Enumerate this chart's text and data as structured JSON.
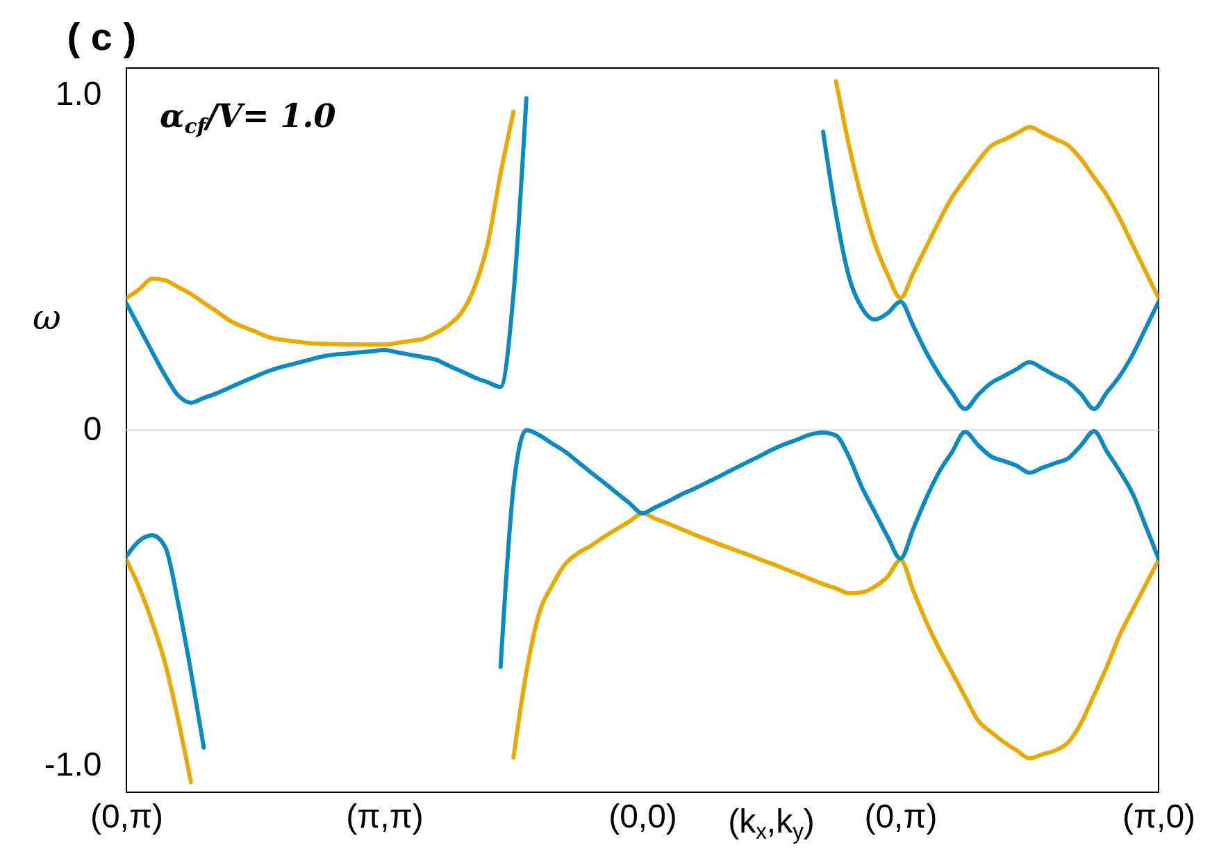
{
  "chart_data": {
    "type": "line",
    "title": "( c )",
    "xlabel": "(k$_{x}$,k$_{y}$)",
    "ylabel": "ω",
    "annotations": [
      "α$_{cf}$/V= 1.0"
    ],
    "categories": [
      "(0,π)",
      null,
      null,
      null,
      null,
      null,
      null,
      null,
      null,
      null,
      null,
      null,
      null,
      null,
      null,
      null,
      null,
      null,
      null,
      null,
      "(π,π)",
      null,
      null,
      null,
      null,
      null,
      null,
      null,
      null,
      null,
      null,
      null,
      null,
      null,
      null,
      null,
      null,
      null,
      null,
      null,
      "(0,0)",
      null,
      null,
      null,
      null,
      null,
      null,
      null,
      null,
      null,
      null,
      null,
      null,
      null,
      null,
      null,
      null,
      null,
      null,
      null,
      "(0,π)",
      null,
      null,
      null,
      null,
      null,
      null,
      null,
      null,
      null,
      null,
      null,
      null,
      null,
      null,
      null,
      null,
      null,
      null,
      null,
      "(π,0)"
    ],
    "ylim": [
      -1.08,
      1.08
    ],
    "yticks": [
      {
        "value": -1,
        "label": "-1.0"
      },
      0,
      {
        "value": 1,
        "label": "1.0"
      }
    ],
    "grid": false,
    "ref_lines": [
      {
        "axis": "y",
        "value": 0,
        "color": "#d9d9d9"
      }
    ],
    "series": [
      {
        "color": "#e8a900",
        "values": [
          0.394,
          0.42,
          0.452,
          0.447,
          0.427,
          0.406,
          0.38,
          0.354,
          0.327,
          0.309,
          0.294,
          0.278,
          0.27,
          0.265,
          0.26,
          0.258,
          0.257,
          0.256,
          0.256,
          0.255,
          0.255,
          0.26,
          0.266,
          0.272,
          0.29,
          0.314,
          0.352,
          0.428,
          0.556,
          0.765,
          0.95,
          null,
          null,
          null,
          null,
          null,
          null,
          null,
          null,
          null,
          null,
          null,
          null,
          null,
          null,
          null,
          null,
          null,
          null,
          null,
          null,
          null,
          null,
          null,
          null,
          null,
          null,
          null,
          null,
          null,
          null,
          null,
          null,
          null,
          null,
          null,
          null,
          null,
          null,
          null,
          null,
          null,
          null,
          null,
          null,
          null,
          null,
          null,
          null,
          null,
          null
        ]
      },
      {
        "color": "#e8a900",
        "values": [
          null,
          null,
          null,
          null,
          null,
          null,
          null,
          null,
          null,
          null,
          null,
          null,
          null,
          null,
          null,
          null,
          null,
          null,
          null,
          null,
          null,
          null,
          null,
          null,
          null,
          null,
          null,
          null,
          null,
          null,
          null,
          null,
          null,
          null,
          null,
          null,
          null,
          null,
          null,
          null,
          null,
          null,
          null,
          null,
          null,
          null,
          null,
          null,
          null,
          null,
          null,
          null,
          null,
          null,
          null,
          1.04,
          0.85,
          0.69,
          0.558,
          0.464,
          0.394,
          0.47,
          0.547,
          0.624,
          0.695,
          0.749,
          0.802,
          0.847,
          0.866,
          0.885,
          0.904,
          0.887,
          0.868,
          0.849,
          0.808,
          0.754,
          0.7,
          0.631,
          0.552,
          0.473,
          0.394
        ]
      },
      {
        "color": "#e8a900",
        "values": [
          -0.387,
          -0.47,
          -0.573,
          -0.695,
          -0.862,
          -1.05,
          null,
          null,
          null,
          null,
          null,
          null,
          null,
          null,
          null,
          null,
          null,
          null,
          null,
          null,
          null,
          null,
          null,
          null,
          null,
          null,
          null,
          null,
          null,
          null,
          null,
          null,
          null,
          null,
          null,
          null,
          null,
          null,
          null,
          null,
          null,
          null,
          null,
          null,
          null,
          null,
          null,
          null,
          null,
          null,
          null,
          null,
          null,
          null,
          null,
          null,
          null,
          null,
          null,
          null,
          null,
          null,
          null,
          null,
          null,
          null,
          null,
          null,
          null,
          null,
          null,
          null,
          null,
          null,
          null,
          null,
          null,
          null,
          null,
          null,
          null
        ]
      },
      {
        "color": "#e8a900",
        "values": [
          null,
          null,
          null,
          null,
          null,
          null,
          null,
          null,
          null,
          null,
          null,
          null,
          null,
          null,
          null,
          null,
          null,
          null,
          null,
          null,
          null,
          null,
          null,
          null,
          null,
          null,
          null,
          null,
          null,
          null,
          -0.976,
          -0.722,
          -0.545,
          -0.463,
          -0.4,
          -0.367,
          -0.345,
          -0.319,
          -0.295,
          -0.272,
          -0.248,
          -0.264,
          -0.279,
          -0.295,
          -0.311,
          -0.326,
          -0.341,
          -0.355,
          -0.369,
          -0.384,
          -0.398,
          -0.413,
          -0.428,
          -0.444,
          -0.459,
          -0.472,
          -0.486,
          -0.484,
          -0.467,
          -0.437,
          -0.387,
          -0.48,
          -0.572,
          -0.652,
          -0.723,
          -0.795,
          -0.865,
          -0.9,
          -0.93,
          -0.955,
          -0.979,
          -0.967,
          -0.955,
          -0.931,
          -0.873,
          -0.79,
          -0.705,
          -0.61,
          -0.535,
          -0.461,
          -0.387
        ]
      },
      {
        "color": "#0a8ac2",
        "values": [
          0.378,
          0.306,
          0.233,
          0.163,
          0.104,
          0.082,
          0.096,
          0.11,
          0.127,
          0.144,
          0.16,
          0.176,
          0.188,
          0.198,
          0.208,
          0.218,
          0.225,
          0.228,
          0.232,
          0.235,
          0.239,
          0.232,
          0.225,
          0.218,
          0.21,
          0.192,
          0.175,
          0.157,
          0.143,
          0.129,
          0.405,
          0.99,
          null,
          null,
          null,
          null,
          null,
          null,
          null,
          null,
          null,
          null,
          null,
          null,
          null,
          null,
          null,
          null,
          null,
          null,
          null,
          null,
          null,
          null,
          null,
          null,
          null,
          null,
          null,
          null,
          null,
          null,
          null,
          null,
          null,
          null,
          null,
          null,
          null,
          null,
          null,
          null,
          null,
          null,
          null,
          null,
          null,
          null,
          null,
          null,
          null
        ]
      },
      {
        "color": "#0a8ac2",
        "values": [
          null,
          null,
          null,
          null,
          null,
          null,
          null,
          null,
          null,
          null,
          null,
          null,
          null,
          null,
          null,
          null,
          null,
          null,
          null,
          null,
          null,
          null,
          null,
          null,
          null,
          null,
          null,
          null,
          null,
          null,
          null,
          null,
          null,
          null,
          null,
          null,
          null,
          null,
          null,
          null,
          null,
          null,
          null,
          null,
          null,
          null,
          null,
          null,
          null,
          null,
          null,
          null,
          null,
          null,
          0.89,
          0.644,
          0.458,
          0.365,
          0.33,
          0.349,
          0.383,
          0.31,
          0.232,
          0.166,
          0.111,
          0.063,
          0.105,
          0.14,
          0.161,
          0.182,
          0.203,
          0.184,
          0.163,
          0.143,
          0.107,
          0.063,
          0.113,
          0.162,
          0.226,
          0.304,
          0.383
        ]
      },
      {
        "color": "#0a8ac2",
        "values": [
          -0.376,
          -0.33,
          -0.314,
          -0.348,
          -0.514,
          -0.72,
          -0.947,
          null,
          null,
          null,
          null,
          null,
          null,
          null,
          null,
          null,
          null,
          null,
          null,
          null,
          null,
          null,
          null,
          null,
          null,
          null,
          null,
          null,
          null,
          null,
          null,
          null,
          null,
          null,
          null,
          null,
          null,
          null,
          null,
          null,
          null,
          null,
          null,
          null,
          null,
          null,
          null,
          null,
          null,
          null,
          null,
          null,
          null,
          null,
          null,
          null,
          null,
          null,
          null,
          null,
          null,
          null,
          null,
          null,
          null,
          null,
          null,
          null,
          null,
          null,
          null,
          null,
          null,
          null,
          null,
          null,
          null,
          null,
          null,
          null,
          null
        ]
      },
      {
        "color": "#0a8ac2",
        "values": [
          null,
          null,
          null,
          null,
          null,
          null,
          null,
          null,
          null,
          null,
          null,
          null,
          null,
          null,
          null,
          null,
          null,
          null,
          null,
          null,
          null,
          null,
          null,
          null,
          null,
          null,
          null,
          null,
          null,
          -0.706,
          -0.17,
          0.0,
          -0.015,
          -0.04,
          -0.064,
          -0.095,
          -0.126,
          -0.156,
          -0.187,
          -0.218,
          -0.248,
          -0.23,
          -0.212,
          -0.192,
          -0.175,
          -0.156,
          -0.137,
          -0.117,
          -0.098,
          -0.079,
          -0.059,
          -0.042,
          -0.028,
          -0.013,
          -0.007,
          -0.016,
          -0.079,
          -0.17,
          -0.244,
          -0.318,
          -0.383,
          -0.293,
          -0.202,
          -0.124,
          -0.065,
          -0.005,
          -0.044,
          -0.078,
          -0.092,
          -0.106,
          -0.127,
          -0.112,
          -0.098,
          -0.084,
          -0.045,
          -0.003,
          -0.064,
          -0.123,
          -0.19,
          -0.286,
          -0.383
        ]
      }
    ]
  }
}
